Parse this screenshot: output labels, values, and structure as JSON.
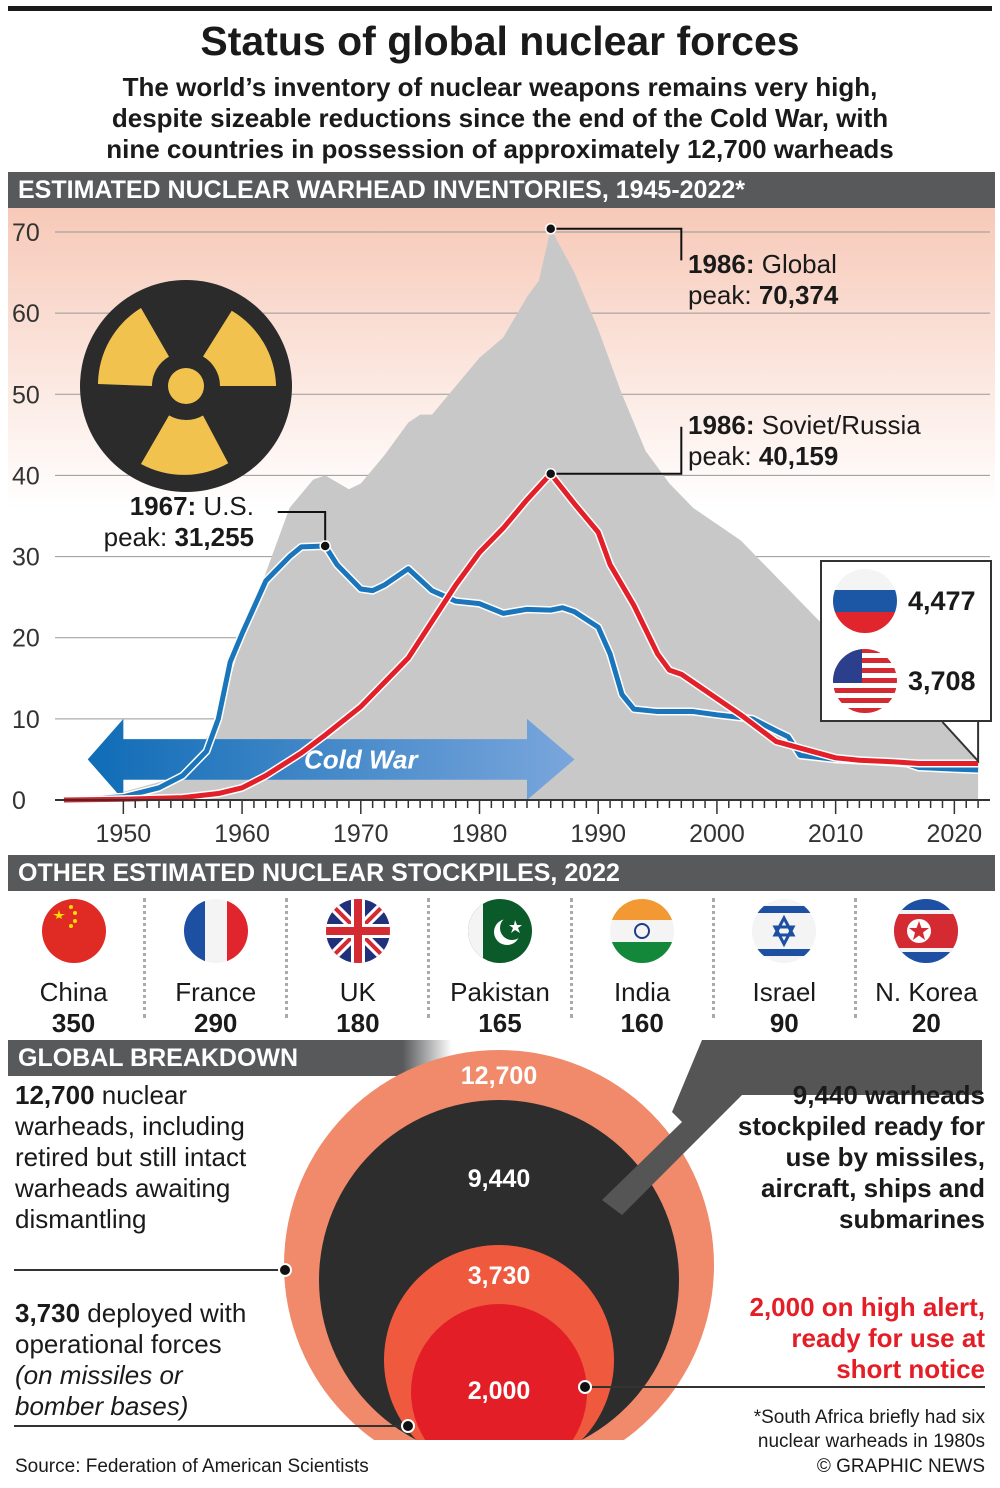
{
  "title": "Status of global nuclear forces",
  "subtitle": [
    "The world’s inventory of nuclear weapons remains very high,",
    "despite sizeable reductions since the end of the Cold War, with",
    "nine countries in possession of approximately 12,700 warheads"
  ],
  "section1": "ESTIMATED NUCLEAR WARHEAD INVENTORIES, 1945-2022*",
  "chart_data": {
    "type": "area",
    "title": "ESTIMATED NUCLEAR WARHEAD INVENTORIES, 1945-2022*",
    "ylabel": "",
    "xlabel": "",
    "ylim": [
      0,
      70
    ],
    "xlim": [
      1945,
      2022
    ],
    "yticks": [
      "0",
      "10",
      "20",
      "30",
      "40",
      "50",
      "60",
      "70"
    ],
    "xticks": [
      "1950",
      "1960",
      "1970",
      "1980",
      "1990",
      "2000",
      "2010",
      "2020"
    ],
    "grid": true,
    "colors": {
      "global": "#c8c8c8",
      "us": "#1a75bb",
      "russia": "#e2202a"
    },
    "series": [
      {
        "name": "Global",
        "type": "area",
        "points": [
          [
            1945,
            0
          ],
          [
            1950,
            1
          ],
          [
            1955,
            3
          ],
          [
            1958,
            10
          ],
          [
            1960,
            20
          ],
          [
            1962,
            28
          ],
          [
            1964,
            36
          ],
          [
            1966,
            39.5
          ],
          [
            1967,
            40
          ],
          [
            1969,
            38.3
          ],
          [
            1970,
            39
          ],
          [
            1972,
            42.5
          ],
          [
            1974,
            46.5
          ],
          [
            1975,
            47.5
          ],
          [
            1976,
            47.5
          ],
          [
            1978,
            51
          ],
          [
            1980,
            54.5
          ],
          [
            1982,
            57
          ],
          [
            1984,
            62
          ],
          [
            1985,
            64
          ],
          [
            1986,
            70.4
          ],
          [
            1988,
            65
          ],
          [
            1990,
            58
          ],
          [
            1992,
            50
          ],
          [
            1994,
            43
          ],
          [
            1996,
            39
          ],
          [
            1998,
            36
          ],
          [
            2000,
            34
          ],
          [
            2002,
            32
          ],
          [
            2004,
            29
          ],
          [
            2006,
            26
          ],
          [
            2008,
            23
          ],
          [
            2010,
            20
          ],
          [
            2012,
            17
          ],
          [
            2014,
            15.5
          ],
          [
            2016,
            14
          ],
          [
            2018,
            13.5
          ],
          [
            2020,
            13
          ],
          [
            2022,
            12.7
          ]
        ]
      },
      {
        "name": "U.S.",
        "type": "line",
        "points": [
          [
            1945,
            0
          ],
          [
            1950,
            0.4
          ],
          [
            1953,
            1.5
          ],
          [
            1955,
            3
          ],
          [
            1957,
            6
          ],
          [
            1958,
            10
          ],
          [
            1959,
            17
          ],
          [
            1960,
            20.5
          ],
          [
            1962,
            27
          ],
          [
            1964,
            30
          ],
          [
            1965,
            31.2
          ],
          [
            1967,
            31.3
          ],
          [
            1968,
            29
          ],
          [
            1970,
            26
          ],
          [
            1971,
            25.8
          ],
          [
            1972,
            26.5
          ],
          [
            1974,
            28.5
          ],
          [
            1976,
            25.8
          ],
          [
            1978,
            24.5
          ],
          [
            1980,
            24.2
          ],
          [
            1982,
            23
          ],
          [
            1984,
            23.5
          ],
          [
            1986,
            23.4
          ],
          [
            1987,
            23.7
          ],
          [
            1988,
            23.2
          ],
          [
            1990,
            21.3
          ],
          [
            1991,
            18
          ],
          [
            1992,
            13
          ],
          [
            1993,
            11.2
          ],
          [
            1995,
            10.9
          ],
          [
            1998,
            10.9
          ],
          [
            2000,
            10.5
          ],
          [
            2003,
            10
          ],
          [
            2005,
            8.5
          ],
          [
            2006,
            7.8
          ],
          [
            2007,
            5.5
          ],
          [
            2010,
            5
          ],
          [
            2014,
            4.7
          ],
          [
            2016,
            4.5
          ],
          [
            2017,
            4
          ],
          [
            2020,
            3.8
          ],
          [
            2022,
            3.7
          ]
        ]
      },
      {
        "name": "Soviet/Russia",
        "type": "line",
        "points": [
          [
            1945,
            0
          ],
          [
            1950,
            0.1
          ],
          [
            1955,
            0.3
          ],
          [
            1958,
            0.8
          ],
          [
            1960,
            1.5
          ],
          [
            1962,
            3
          ],
          [
            1965,
            5.8
          ],
          [
            1967,
            8
          ],
          [
            1970,
            11.5
          ],
          [
            1972,
            14.5
          ],
          [
            1974,
            17.5
          ],
          [
            1976,
            22
          ],
          [
            1978,
            26.5
          ],
          [
            1980,
            30.5
          ],
          [
            1982,
            33.5
          ],
          [
            1984,
            37
          ],
          [
            1986,
            40.2
          ],
          [
            1988,
            36.5
          ],
          [
            1990,
            33
          ],
          [
            1991,
            29
          ],
          [
            1993,
            24
          ],
          [
            1995,
            18
          ],
          [
            1996,
            16
          ],
          [
            1997,
            15.5
          ],
          [
            2000,
            12.5
          ],
          [
            2002,
            10.5
          ],
          [
            2004,
            8.3
          ],
          [
            2005,
            7.2
          ],
          [
            2008,
            6
          ],
          [
            2010,
            5.2
          ],
          [
            2012,
            4.9
          ],
          [
            2015,
            4.7
          ],
          [
            2017,
            4.5
          ],
          [
            2020,
            4.5
          ],
          [
            2022,
            4.5
          ]
        ]
      }
    ],
    "annotations": [
      {
        "year": 1986,
        "bold": "1986:",
        "text": " Global",
        "line2": "peak: ",
        "value": "70,374"
      },
      {
        "year": 1986,
        "bold": "1986:",
        "text": " Soviet/Russia",
        "line2": "peak: ",
        "value": "40,159"
      },
      {
        "year": 1967,
        "bold": "1967:",
        "text": " U.S.",
        "line2": "peak: ",
        "value": "31,255"
      }
    ],
    "cold_war_label": "Cold War",
    "latest": {
      "russia": "4,477",
      "us": "3,708"
    }
  },
  "section2": "OTHER ESTIMATED NUCLEAR STOCKPILES, 2022",
  "stockpiles": [
    {
      "country": "China",
      "value": "350"
    },
    {
      "country": "France",
      "value": "290"
    },
    {
      "country": "UK",
      "value": "180"
    },
    {
      "country": "Pakistan",
      "value": "165"
    },
    {
      "country": "India",
      "value": "160"
    },
    {
      "country": "Israel",
      "value": "90"
    },
    {
      "country": "N. Korea",
      "value": "20"
    }
  ],
  "section3": "GLOBAL BREAKDOWN",
  "breakdown": {
    "circles": [
      "12,700",
      "9,440",
      "3,730",
      "2,000"
    ],
    "left1_bold": "12,700",
    "left1": " nuclear warheads, including retired but still intact warheads awaiting dismantling",
    "left2_bold": "3,730",
    "left2": " deployed with operational forces",
    "left2_italic": "(on missiles or bomber bases)",
    "right1": "9,440 warheads stockpiled ready for use by missiles, aircraft, ships and submarines",
    "right2": "2,000 on high alert, ready for use at short notice",
    "colors": {
      "outer": "#f08a6b",
      "stockpiled": "#2d2d2d",
      "deployed": "#ef5a3f",
      "alert": "#e41e26"
    }
  },
  "footnote": "*South Africa briefly had six nuclear warheads in 1980s",
  "source": "Source: Federation of American Scientists",
  "credit": "© GRAPHIC NEWS"
}
